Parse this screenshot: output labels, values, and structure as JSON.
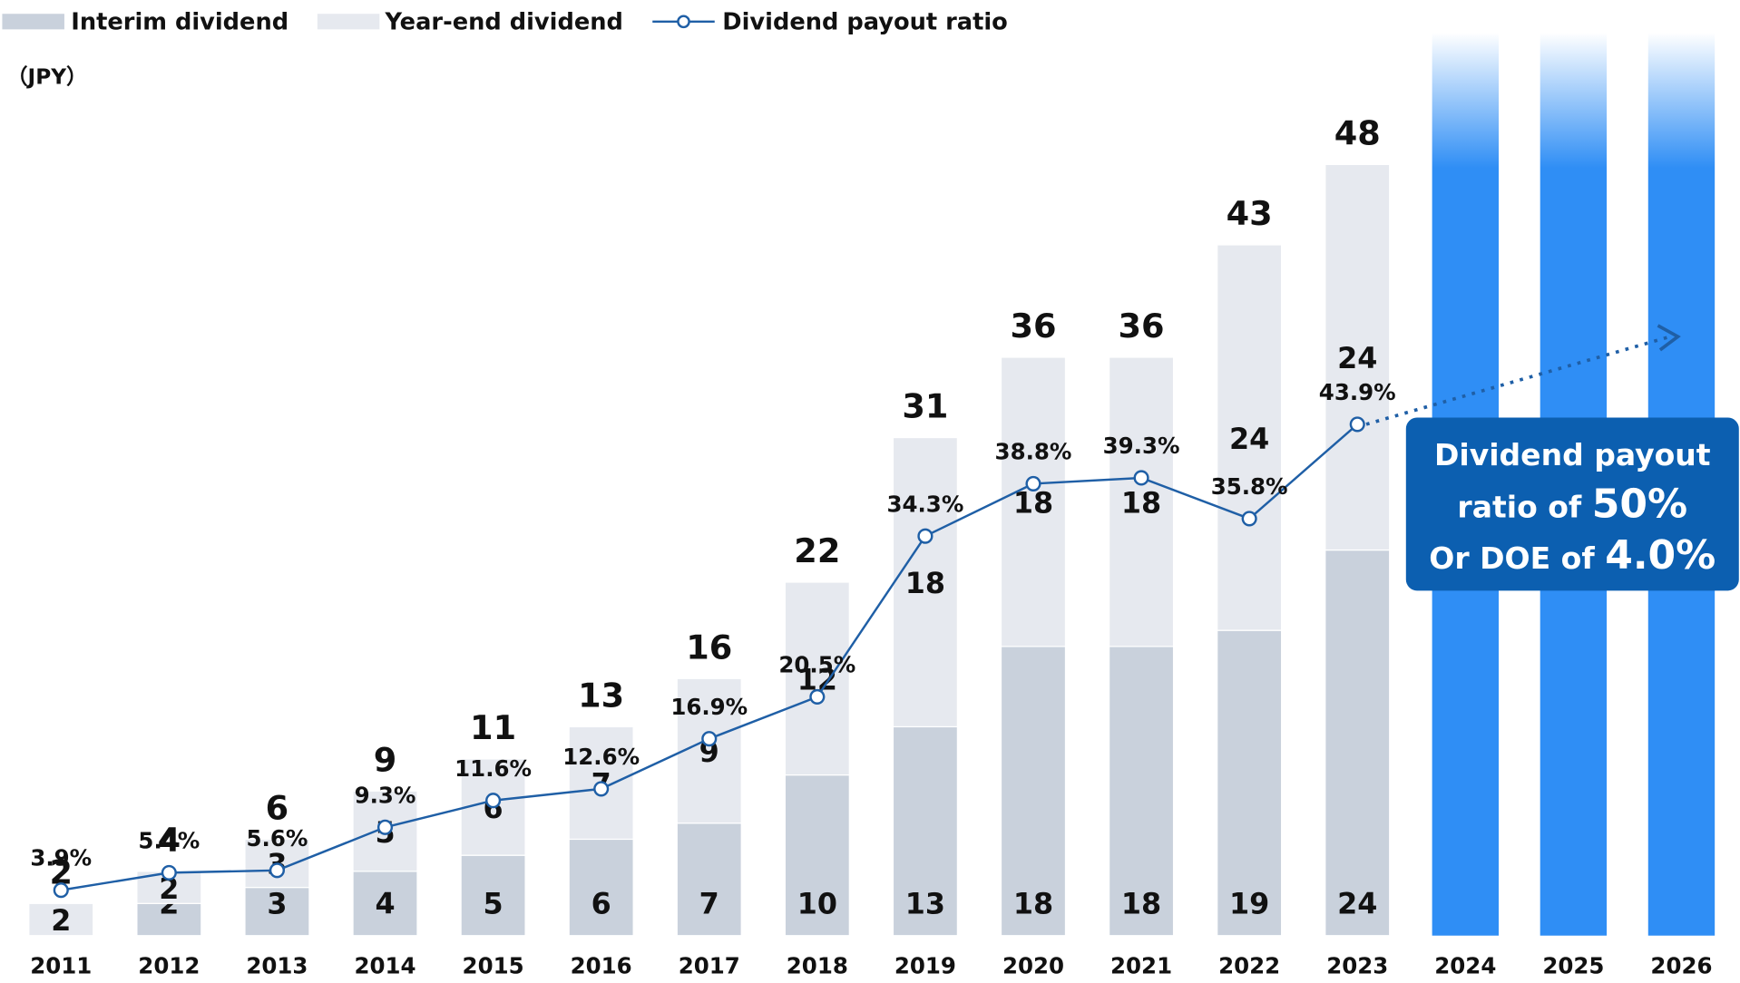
{
  "chart_data": {
    "type": "bar",
    "unit_label": "（JPY）",
    "categories": [
      "2011",
      "2012",
      "2013",
      "2014",
      "2015",
      "2016",
      "2017",
      "2018",
      "2019",
      "2020",
      "2021",
      "2022",
      "2023",
      "2024",
      "2025",
      "2026"
    ],
    "series": [
      {
        "name": "Interim dividend",
        "color": "#c9d1dc",
        "values": [
          null,
          2,
          3,
          4,
          5,
          6,
          7,
          10,
          13,
          18,
          18,
          19,
          24,
          null,
          null,
          null
        ]
      },
      {
        "name": "Year-end dividend",
        "color": "#e6e9ef",
        "values": [
          2,
          2,
          3,
          5,
          6,
          7,
          9,
          12,
          18,
          18,
          18,
          24,
          24,
          null,
          null,
          null
        ]
      },
      {
        "name": "Dividend payout ratio",
        "color": "#1f5fa6",
        "type": "line",
        "axis": "y2",
        "values": [
          3.9,
          5.4,
          5.6,
          9.3,
          11.6,
          12.6,
          16.9,
          20.5,
          34.3,
          38.8,
          39.3,
          35.8,
          43.9,
          null,
          null,
          null
        ],
        "value_labels": [
          "3.9%",
          "5.4%",
          "5.6%",
          "9.3%",
          "11.6%",
          "12.6%",
          "16.9%",
          "20.5%",
          "34.3%",
          "38.8%",
          "39.3%",
          "35.8%",
          "43.9%",
          null,
          null,
          null
        ]
      }
    ],
    "totals": [
      2,
      4,
      6,
      9,
      11,
      13,
      16,
      22,
      31,
      36,
      36,
      43,
      48,
      null,
      null,
      null
    ],
    "ylim": [
      0,
      58
    ],
    "y2lim": [
      0,
      80
    ],
    "forecast_color": "#2f8ef5",
    "annotation": {
      "line1": "Dividend payout",
      "line2": "ratio of ",
      "line2_value": "50%",
      "line3": "Or DOE of ",
      "line3_value": "4.0%"
    }
  }
}
